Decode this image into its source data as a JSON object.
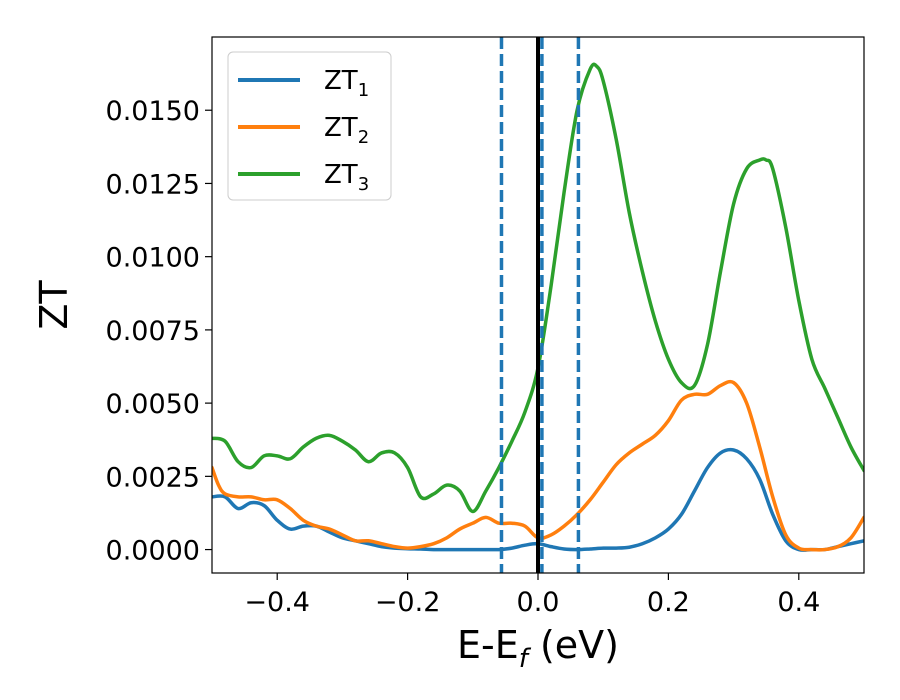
{
  "chart_data": {
    "type": "line",
    "title": "",
    "xlabel": "E-E",
    "xlabel_sub": "f",
    "xlabel_unit": " (eV)",
    "ylabel": "ZT",
    "xlim": [
      -0.5,
      0.5
    ],
    "ylim": [
      -0.0008,
      0.0175
    ],
    "xticks": [
      -0.4,
      -0.2,
      0.0,
      0.2,
      0.4
    ],
    "xtick_labels": [
      "−0.4",
      "−0.2",
      "0.0",
      "0.2",
      "0.4"
    ],
    "yticks": [
      0.0,
      0.0025,
      0.005,
      0.0075,
      0.01,
      0.0125,
      0.015
    ],
    "ytick_labels": [
      "0.0000",
      "0.0025",
      "0.0050",
      "0.0075",
      "0.0100",
      "0.0125",
      "0.0150"
    ],
    "grid": false,
    "legend_position": "top-left",
    "vertical_lines": [
      {
        "x": 0.0,
        "style": "solid",
        "color": "#000000"
      },
      {
        "x": -0.056,
        "style": "dashed",
        "color": "#1f77b4"
      },
      {
        "x": 0.006,
        "style": "dashed",
        "color": "#1f77b4"
      },
      {
        "x": 0.062,
        "style": "dashed",
        "color": "#1f77b4"
      }
    ],
    "series": [
      {
        "name": "ZT",
        "name_sub": "1",
        "color": "#1f77b4",
        "x": [
          -0.5,
          -0.48,
          -0.46,
          -0.44,
          -0.42,
          -0.4,
          -0.38,
          -0.36,
          -0.34,
          -0.32,
          -0.3,
          -0.28,
          -0.26,
          -0.24,
          -0.22,
          -0.2,
          -0.18,
          -0.16,
          -0.14,
          -0.12,
          -0.1,
          -0.08,
          -0.06,
          -0.04,
          -0.02,
          0.0,
          0.02,
          0.04,
          0.06,
          0.08,
          0.1,
          0.12,
          0.14,
          0.16,
          0.18,
          0.2,
          0.22,
          0.24,
          0.26,
          0.28,
          0.3,
          0.32,
          0.34,
          0.36,
          0.38,
          0.4,
          0.42,
          0.44,
          0.46,
          0.48,
          0.5
        ],
        "y": [
          0.0018,
          0.0018,
          0.0014,
          0.0016,
          0.0015,
          0.001,
          0.0007,
          0.0008,
          0.0008,
          0.0006,
          0.0004,
          0.0003,
          0.0002,
          0.0001,
          5e-05,
          3e-05,
          2e-05,
          0.0,
          0.0,
          0.0,
          0.0,
          0.0,
          0.0,
          5e-05,
          0.00015,
          0.0002,
          0.0001,
          2e-05,
          0.0,
          2e-05,
          5e-05,
          5e-05,
          8e-05,
          0.0002,
          0.0004,
          0.0007,
          0.0012,
          0.002,
          0.0028,
          0.0033,
          0.0034,
          0.0031,
          0.0024,
          0.0012,
          0.0003,
          0.0,
          0.0,
          0.0,
          0.0001,
          0.0002,
          0.0003
        ]
      },
      {
        "name": "ZT",
        "name_sub": "2",
        "color": "#ff7f0e",
        "x": [
          -0.5,
          -0.49,
          -0.48,
          -0.46,
          -0.44,
          -0.42,
          -0.4,
          -0.38,
          -0.36,
          -0.34,
          -0.32,
          -0.3,
          -0.28,
          -0.26,
          -0.24,
          -0.22,
          -0.2,
          -0.18,
          -0.16,
          -0.14,
          -0.12,
          -0.1,
          -0.08,
          -0.06,
          -0.04,
          -0.02,
          0.0,
          0.02,
          0.04,
          0.06,
          0.08,
          0.1,
          0.12,
          0.14,
          0.16,
          0.18,
          0.2,
          0.22,
          0.24,
          0.26,
          0.28,
          0.3,
          0.32,
          0.34,
          0.36,
          0.38,
          0.4,
          0.42,
          0.44,
          0.46,
          0.48,
          0.5
        ],
        "y": [
          0.0028,
          0.0022,
          0.0019,
          0.0018,
          0.0018,
          0.0017,
          0.0017,
          0.0014,
          0.001,
          0.0008,
          0.0007,
          0.0005,
          0.0003,
          0.0003,
          0.0002,
          0.0001,
          5e-05,
          0.0001,
          0.0002,
          0.0004,
          0.0007,
          0.0009,
          0.0011,
          0.0009,
          0.0009,
          0.0008,
          0.0004,
          0.0005,
          0.0008,
          0.0012,
          0.0017,
          0.0023,
          0.0029,
          0.0033,
          0.0036,
          0.0039,
          0.0044,
          0.0051,
          0.0053,
          0.0053,
          0.0056,
          0.0057,
          0.005,
          0.0035,
          0.0018,
          0.0005,
          5e-05,
          0.0,
          0.0,
          0.0001,
          0.0004,
          0.0011
        ]
      },
      {
        "name": "ZT",
        "name_sub": "3",
        "color": "#2ca02c",
        "x": [
          -0.5,
          -0.48,
          -0.46,
          -0.44,
          -0.42,
          -0.4,
          -0.38,
          -0.36,
          -0.34,
          -0.32,
          -0.3,
          -0.28,
          -0.26,
          -0.24,
          -0.22,
          -0.2,
          -0.18,
          -0.16,
          -0.14,
          -0.12,
          -0.1,
          -0.08,
          -0.06,
          -0.04,
          -0.02,
          0.0,
          0.02,
          0.04,
          0.06,
          0.08,
          0.09,
          0.1,
          0.12,
          0.14,
          0.16,
          0.18,
          0.2,
          0.22,
          0.24,
          0.26,
          0.28,
          0.3,
          0.32,
          0.34,
          0.35,
          0.36,
          0.38,
          0.4,
          0.42,
          0.44,
          0.46,
          0.48,
          0.5
        ],
        "y": [
          0.0038,
          0.0037,
          0.003,
          0.0028,
          0.0032,
          0.0032,
          0.0031,
          0.0035,
          0.0038,
          0.0039,
          0.0037,
          0.0034,
          0.003,
          0.0033,
          0.0033,
          0.0028,
          0.0018,
          0.0019,
          0.0022,
          0.002,
          0.0013,
          0.002,
          0.0028,
          0.0037,
          0.0047,
          0.0062,
          0.009,
          0.0122,
          0.015,
          0.0164,
          0.0165,
          0.016,
          0.014,
          0.0115,
          0.0095,
          0.0078,
          0.0065,
          0.0057,
          0.0056,
          0.007,
          0.0095,
          0.0118,
          0.013,
          0.0133,
          0.0133,
          0.013,
          0.011,
          0.0085,
          0.0065,
          0.0055,
          0.0045,
          0.0035,
          0.0027
        ]
      }
    ]
  }
}
